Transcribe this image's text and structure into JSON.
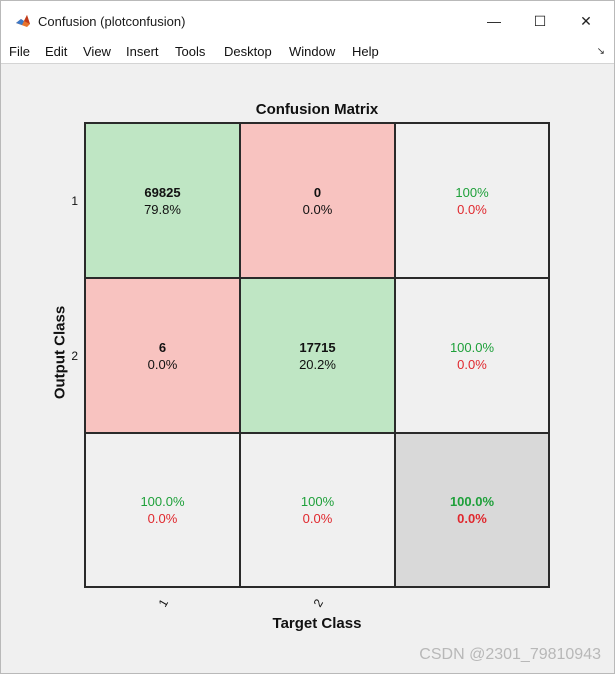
{
  "window": {
    "title": "Confusion (plotconfusion)",
    "controls": {
      "minimize": "—",
      "maximize": "☐",
      "close": "✕"
    }
  },
  "menu": {
    "items": [
      "File",
      "Edit",
      "View",
      "Insert",
      "Tools",
      "Desktop",
      "Window",
      "Help"
    ],
    "dock_arrow": "↘"
  },
  "chart_data": {
    "type": "table",
    "title": "Confusion Matrix",
    "xlabel": "Target Class",
    "ylabel": "Output Class",
    "x_ticks": [
      "1",
      "2"
    ],
    "y_ticks": [
      "1",
      "2"
    ],
    "cells": [
      [
        {
          "count": "69825",
          "percent": "79.8%",
          "kind": "correct"
        },
        {
          "count": "0",
          "percent": "0.0%",
          "kind": "wrong"
        },
        {
          "top": "100%",
          "bottom": "0.0%",
          "kind": "summary"
        }
      ],
      [
        {
          "count": "6",
          "percent": "0.0%",
          "kind": "wrong"
        },
        {
          "count": "17715",
          "percent": "20.2%",
          "kind": "correct"
        },
        {
          "top": "100.0%",
          "bottom": "0.0%",
          "kind": "summary"
        }
      ],
      [
        {
          "top": "100.0%",
          "bottom": "0.0%",
          "kind": "summary"
        },
        {
          "top": "100%",
          "bottom": "0.0%",
          "kind": "summary"
        },
        {
          "top": "100.0%",
          "bottom": "0.0%",
          "kind": "overall"
        }
      ]
    ],
    "colors": {
      "correct": "#bfe6c4",
      "wrong": "#f8c3c0",
      "summary": "#f0f0f0",
      "overall": "#d9d9d9",
      "accuracy_text": "#1ea03a",
      "error_text": "#e0282e"
    }
  },
  "watermark": "CSDN @2301_79810943"
}
